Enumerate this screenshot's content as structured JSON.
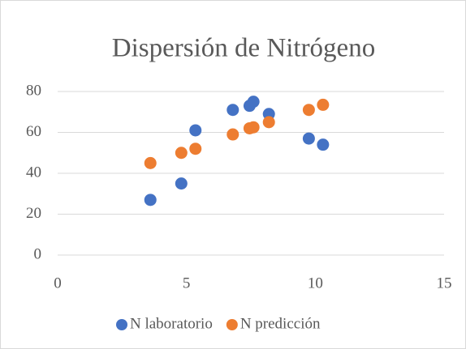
{
  "chart_data": {
    "type": "scatter",
    "title": "Dispersión  de Nitrógeno",
    "x": [
      3.6,
      4.8,
      5.35,
      6.8,
      7.45,
      7.6,
      8.2,
      9.75,
      10.3
    ],
    "series": [
      {
        "name": "N laboratorio",
        "color": "#4472c4",
        "values": [
          27,
          35,
          61,
          71,
          73,
          75,
          69,
          57,
          54
        ]
      },
      {
        "name": "N predicción",
        "color": "#ed7d31",
        "values": [
          45,
          50,
          52,
          59,
          62,
          62.5,
          65,
          71,
          73.5
        ]
      }
    ],
    "xlim": [
      0,
      15
    ],
    "xticks": [
      0,
      5,
      10,
      15
    ],
    "ylim": [
      0,
      80
    ],
    "yticks": [
      0,
      20,
      40,
      60,
      80
    ],
    "grid": true,
    "legend": "bottom"
  }
}
